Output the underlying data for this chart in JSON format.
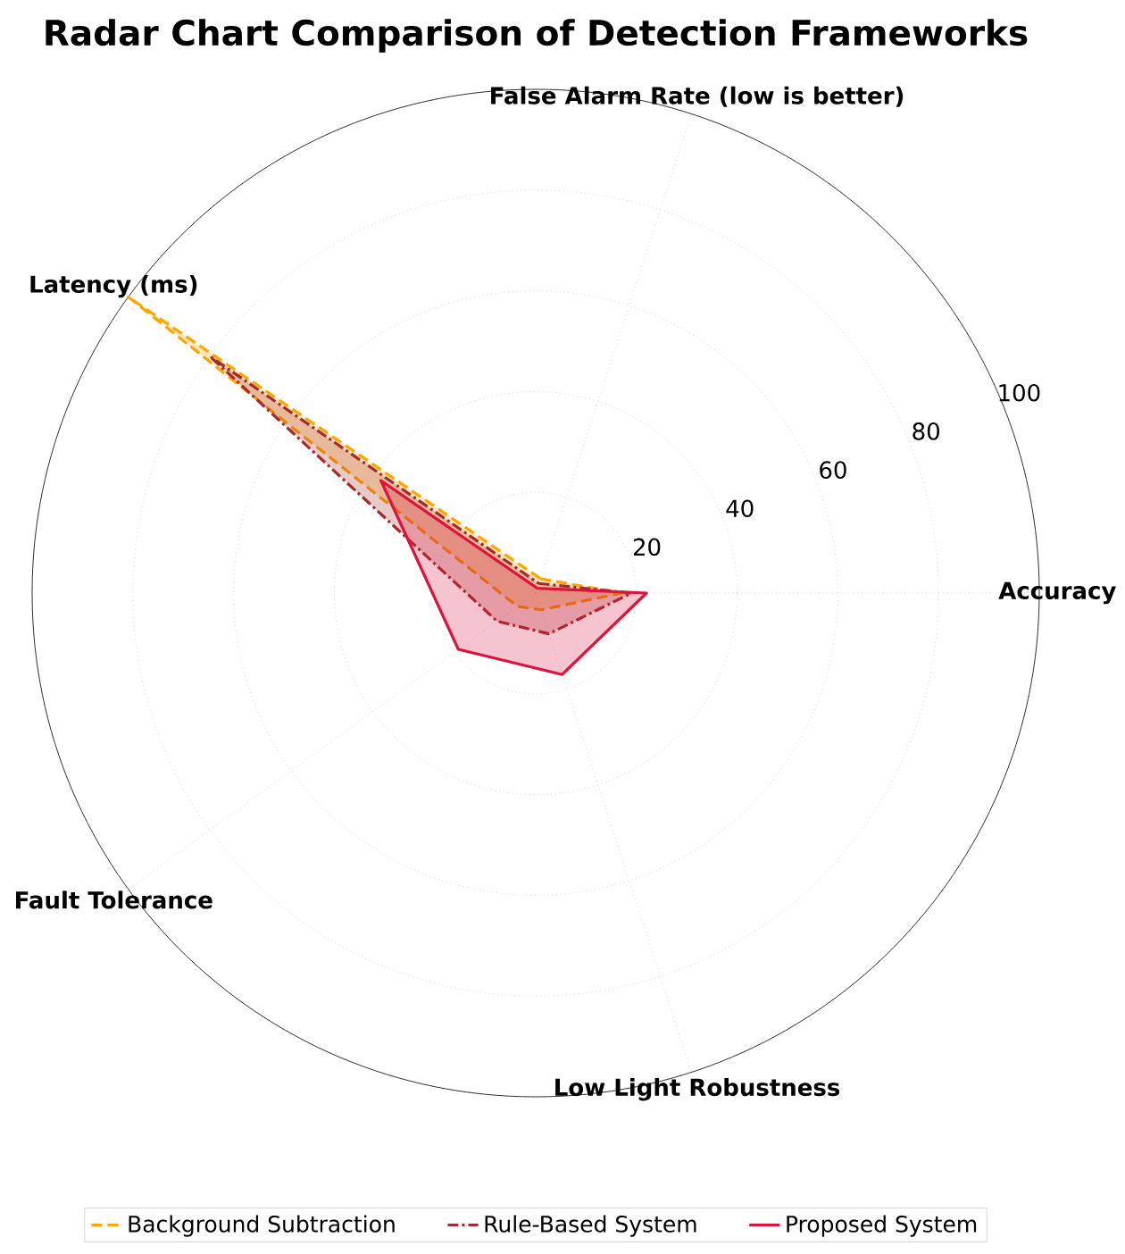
{
  "chart_data": {
    "type": "radar",
    "title": "Radar Chart Comparison of Detection Frameworks",
    "categories": [
      "False Alarm Rate (low is better)",
      "Accuracy",
      "Low Light Robustness",
      "Fault Tolerance",
      "Latency (ms)"
    ],
    "series": [
      {
        "name": "Background Subtraction",
        "color": "#ffa500",
        "line_style": "dashed",
        "values": [
          3,
          17,
          3.5,
          4.5,
          100
        ]
      },
      {
        "name": "Rule-Based System",
        "color": "#a52a2a",
        "line_style": "dashdot",
        "values": [
          2,
          19,
          8.5,
          9.5,
          80
        ]
      },
      {
        "name": "Proposed System",
        "color": "#dc143c",
        "line_style": "solid",
        "values": [
          1,
          22,
          17,
          19,
          38
        ]
      }
    ],
    "ylim": [
      0,
      100
    ],
    "yticks": [
      20,
      40,
      60,
      80,
      100
    ],
    "grid": true,
    "legend": "bottom"
  }
}
